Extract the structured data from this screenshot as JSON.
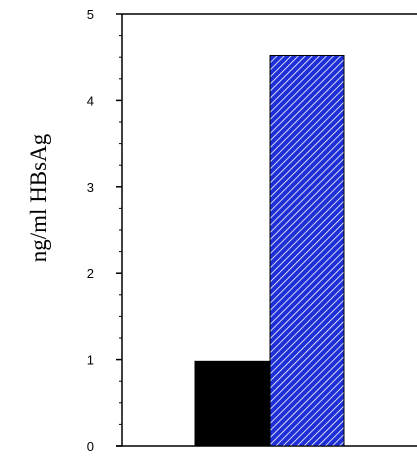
{
  "chart_data": {
    "type": "bar",
    "title": "",
    "xlabel": "",
    "ylabel": "ng/ml  HBsAg",
    "ylim": [
      0,
      5
    ],
    "yticks": [
      "0",
      "1",
      "2",
      "3",
      "4",
      "5"
    ],
    "grid": false,
    "legend": "none",
    "categories": [
      "",
      ""
    ],
    "values": [
      0.98,
      4.52
    ],
    "bar_styles": [
      {
        "fill": "#000000",
        "pattern": "solid"
      },
      {
        "fill": "#1e2fd6",
        "pattern": "diagonal-hatch"
      }
    ]
  }
}
